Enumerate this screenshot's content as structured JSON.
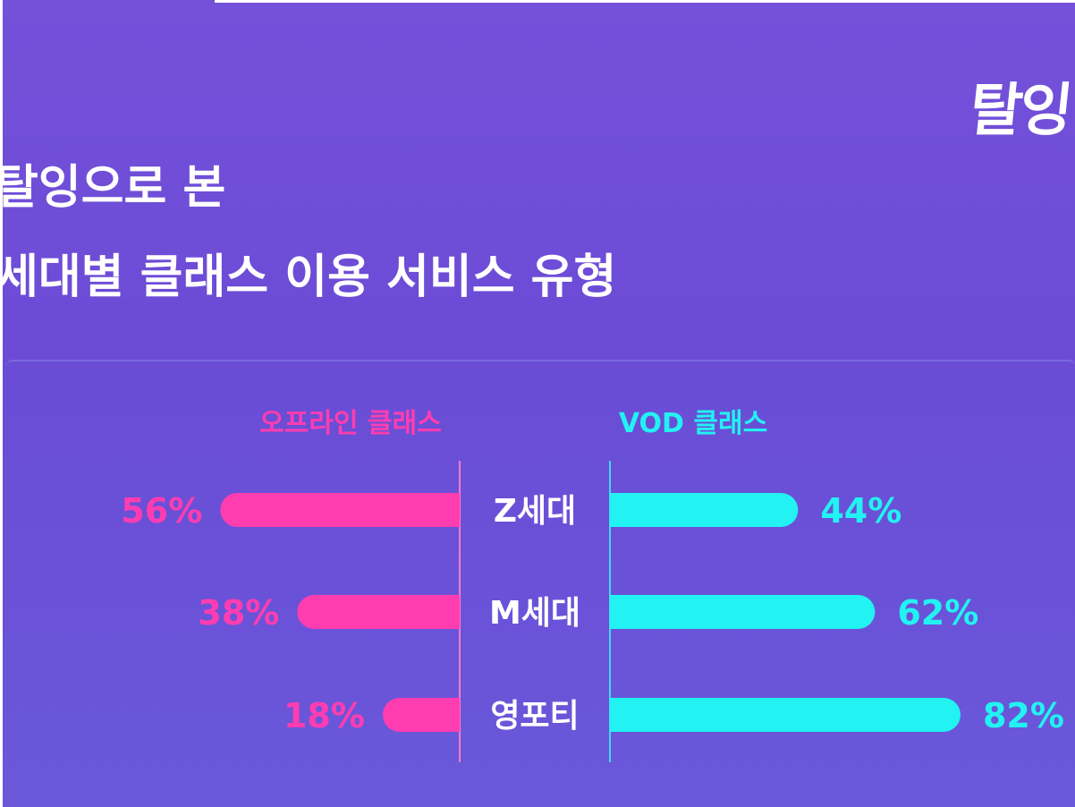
{
  "logo": "탈잉",
  "title_line1": "탈잉으로 본",
  "title_line2": "세대별 클래스 이용 서비스 유형",
  "chart_data": {
    "type": "bar",
    "categories": [
      "Z세대",
      "M세대",
      "영포티"
    ],
    "series": [
      {
        "name": "오프라인 클래스",
        "values": [
          56,
          38,
          18
        ],
        "labels": [
          "56%",
          "38%",
          "18%"
        ],
        "color": "#ff3db1"
      },
      {
        "name": "VOD 클래스",
        "values": [
          44,
          62,
          82
        ],
        "labels": [
          "44%",
          "62%",
          "82%"
        ],
        "color": "#22f2f2"
      }
    ],
    "xlim": [
      0,
      100
    ],
    "grid": false
  },
  "colors": {
    "background": "#7050d8",
    "offline": "#ff3db1",
    "vod": "#22f2f2",
    "axis_offline": "#ff7acb",
    "axis_vod": "#3fd9f5"
  }
}
